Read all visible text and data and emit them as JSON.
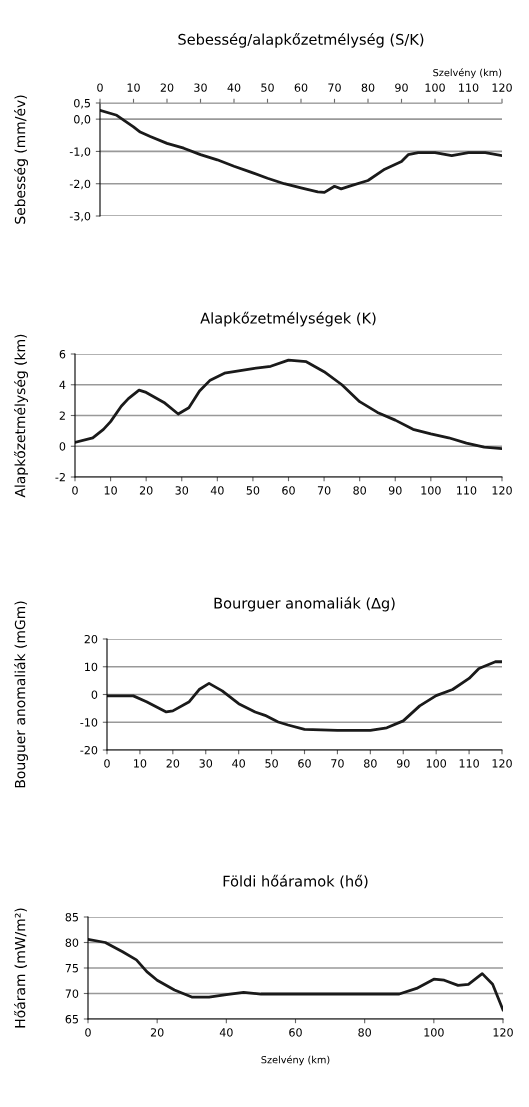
{
  "chart_data": [
    {
      "type": "line",
      "title": "Sebesség/alapkőzetmélység (S/K)",
      "ylabel": "Sebesség (mm/év)",
      "xlabel": "Szelvény (km)",
      "grid": "y",
      "line_style": "solid",
      "color": "#1a1a1a",
      "x": [
        0,
        5,
        10,
        12,
        15,
        20,
        25,
        30,
        35,
        40,
        45,
        50,
        55,
        60,
        65,
        67,
        70,
        72,
        75,
        80,
        85,
        90,
        92,
        95,
        100,
        105,
        110,
        115,
        120
      ],
      "values": [
        0.27,
        0.12,
        -0.24,
        -0.4,
        -0.54,
        -0.75,
        -0.9,
        -1.1,
        -1.26,
        -1.46,
        -1.64,
        -1.83,
        -2.0,
        -2.13,
        -2.25,
        -2.27,
        -2.08,
        -2.16,
        -2.06,
        -1.9,
        -1.55,
        -1.31,
        -1.1,
        -1.04,
        -1.04,
        -1.13,
        -1.04,
        -1.04,
        -1.13
      ],
      "xlim": [
        0,
        120
      ],
      "xticks": [
        0,
        10,
        20,
        30,
        40,
        50,
        60,
        70,
        80,
        90,
        100,
        110,
        120
      ],
      "ylim": [
        -3,
        0.5
      ],
      "yticks": [
        {
          "value": 0.5,
          "label": "0,5"
        },
        {
          "value": 0,
          "label": "0,0"
        },
        {
          "value": -1,
          "label": "-1,0"
        },
        {
          "value": -2,
          "label": "-2,0"
        },
        {
          "value": -3,
          "label": "-3,0"
        }
      ]
    },
    {
      "type": "line",
      "title": "Alapkőzetmélységek (K)",
      "ylabel": "Alapkőzetmélység (km)",
      "grid": "y",
      "line_style": "solid",
      "color": "#1a1a1a",
      "x": [
        0,
        5,
        8,
        10,
        13,
        15,
        18,
        20,
        25,
        29,
        32,
        35,
        38,
        42,
        50,
        55,
        60,
        65,
        70,
        75,
        80,
        85,
        90,
        95,
        100,
        105,
        110,
        115,
        120
      ],
      "values": [
        0.25,
        0.55,
        1.1,
        1.6,
        2.6,
        3.1,
        3.65,
        3.5,
        2.85,
        2.1,
        2.5,
        3.6,
        4.3,
        4.75,
        5.05,
        5.2,
        5.6,
        5.5,
        4.85,
        4.0,
        2.9,
        2.2,
        1.7,
        1.1,
        0.8,
        0.55,
        0.2,
        -0.05,
        -0.15
      ],
      "xlim": [
        0,
        120
      ],
      "xticks": [
        0,
        10,
        20,
        30,
        40,
        50,
        60,
        70,
        80,
        90,
        100,
        110,
        120
      ],
      "ylim": [
        -2,
        6
      ],
      "yticks": [
        -2,
        0,
        2,
        4,
        6
      ]
    },
    {
      "type": "line",
      "title": "Bourguer anomaliák (∆g)",
      "ylabel": "Bouguer anomaliák (mGm)",
      "grid": "y",
      "line_style": "solid",
      "color": "#1a1a1a",
      "x": [
        0,
        8,
        12,
        18,
        20,
        25,
        28,
        31,
        35,
        40,
        45,
        48,
        52,
        55,
        60,
        70,
        80,
        85,
        90,
        95,
        100,
        105,
        110,
        113,
        118,
        120
      ],
      "values": [
        -0.5,
        -0.5,
        -2.6,
        -6.3,
        -5.9,
        -2.6,
        1.8,
        4,
        1.3,
        -3.3,
        -6.3,
        -7.5,
        -9.9,
        -11,
        -12.6,
        -12.9,
        -12.9,
        -12,
        -9.5,
        -4.1,
        -0.4,
        1.8,
        5.8,
        9.4,
        11.8,
        11.8
      ],
      "xlim": [
        0,
        120
      ],
      "xticks": [
        0,
        10,
        20,
        30,
        40,
        50,
        60,
        70,
        80,
        90,
        100,
        110,
        120
      ],
      "ylim": [
        -20,
        20
      ],
      "yticks": [
        -20,
        -10,
        0,
        10,
        20
      ]
    },
    {
      "type": "line",
      "title": "Földi hőáramok (hő)",
      "ylabel": "Hőáram (mW/m²)",
      "xlabel": "Szelvény (km)",
      "grid": "y",
      "line_style": "solid",
      "color": "#1a1a1a",
      "x": [
        0,
        5,
        10,
        14,
        17,
        20,
        25,
        30,
        35,
        40,
        45,
        50,
        90,
        95,
        100,
        103,
        107,
        110,
        114,
        117,
        120
      ],
      "values": [
        80.6,
        80,
        78.2,
        76.6,
        74.3,
        72.6,
        70.7,
        69.3,
        69.3,
        69.8,
        70.2,
        69.9,
        69.9,
        71,
        72.8,
        72.6,
        71.6,
        71.8,
        73.9,
        71.8,
        66.8
      ],
      "xlim": [
        0,
        120
      ],
      "xticks": [
        0,
        20,
        40,
        60,
        80,
        100,
        120
      ],
      "ylim": [
        65,
        85
      ],
      "yticks": [
        65,
        70,
        75,
        80,
        85
      ]
    }
  ]
}
